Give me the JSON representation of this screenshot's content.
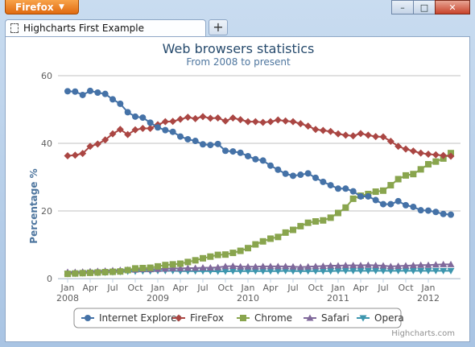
{
  "window": {
    "app_button": "Firefox",
    "tab_title": "Highcharts First Example",
    "new_tab_label": "+",
    "controls": {
      "minimize": "–",
      "maximize": "□",
      "close": "✕"
    }
  },
  "icons": [
    "dropdown-caret-icon",
    "page-icon",
    "plus-icon",
    "minimize-icon",
    "maximize-icon",
    "close-icon"
  ],
  "chart_data": {
    "type": "line",
    "title": "Web browsers statistics",
    "subtitle": "From 2008 to present",
    "ylabel": "Percentage %",
    "ylim": [
      0,
      60
    ],
    "yticks": [
      0,
      20,
      40,
      60
    ],
    "grid": true,
    "legend": "bottom",
    "credits": "Highcharts.com",
    "x_tick_labels": [
      "Jan",
      "Apr",
      "Jul",
      "Oct",
      "Jan",
      "Apr",
      "Jul",
      "Oct",
      "Jan",
      "Apr",
      "Jul",
      "Oct",
      "Jan",
      "Apr",
      "Jul",
      "Oct",
      "Jan"
    ],
    "x_year_labels": [
      "2008",
      "2009",
      "2010",
      "2011",
      "2012"
    ],
    "x": [
      "2008-01",
      "2008-02",
      "2008-03",
      "2008-04",
      "2008-05",
      "2008-06",
      "2008-07",
      "2008-08",
      "2008-09",
      "2008-10",
      "2008-11",
      "2008-12",
      "2009-01",
      "2009-02",
      "2009-03",
      "2009-04",
      "2009-05",
      "2009-06",
      "2009-07",
      "2009-08",
      "2009-09",
      "2009-10",
      "2009-11",
      "2009-12",
      "2010-01",
      "2010-02",
      "2010-03",
      "2010-04",
      "2010-05",
      "2010-06",
      "2010-07",
      "2010-08",
      "2010-09",
      "2010-10",
      "2010-11",
      "2010-12",
      "2011-01",
      "2011-02",
      "2011-03",
      "2011-04",
      "2011-05",
      "2011-06",
      "2011-07",
      "2011-08",
      "2011-09",
      "2011-10",
      "2011-11",
      "2011-12",
      "2012-01",
      "2012-02",
      "2012-03",
      "2012-04"
    ],
    "series": [
      {
        "name": "Internet Explorer",
        "color": "#4572a7",
        "marker": "circle",
        "values": [
          55.4,
          55.3,
          54.3,
          55.5,
          55.0,
          54.6,
          53.0,
          51.7,
          49.2,
          47.9,
          47.6,
          46.1,
          44.7,
          43.9,
          43.4,
          42.0,
          41.2,
          40.7,
          39.7,
          39.5,
          39.8,
          37.8,
          37.6,
          37.2,
          36.2,
          35.3,
          34.9,
          33.4,
          32.2,
          31.0,
          30.4,
          30.7,
          31.1,
          29.8,
          28.6,
          27.6,
          26.6,
          26.6,
          25.8,
          24.3,
          24.3,
          23.2,
          22.0,
          22.0,
          22.9,
          21.7,
          21.2,
          20.2,
          20.1,
          19.7,
          19.1,
          18.9
        ]
      },
      {
        "name": "FireFox",
        "color": "#aa4643",
        "marker": "diamond",
        "values": [
          36.3,
          36.5,
          37.0,
          39.1,
          39.8,
          41.0,
          42.8,
          44.1,
          42.6,
          44.0,
          44.4,
          44.4,
          45.5,
          46.4,
          46.5,
          47.1,
          47.7,
          47.3,
          47.9,
          47.4,
          47.5,
          46.6,
          47.5,
          47.0,
          46.4,
          46.4,
          46.2,
          46.4,
          46.9,
          46.6,
          46.4,
          45.8,
          45.1,
          44.1,
          43.8,
          43.5,
          42.8,
          42.4,
          42.2,
          42.9,
          42.4,
          42.0,
          41.9,
          40.6,
          39.1,
          38.3,
          37.7,
          37.1,
          36.8,
          36.6,
          36.4,
          36.2
        ]
      },
      {
        "name": "Chrome",
        "color": "#89a54e",
        "marker": "square",
        "values": [
          1.4,
          1.5,
          1.6,
          1.7,
          1.8,
          1.9,
          2.0,
          2.1,
          2.5,
          3.0,
          3.1,
          3.2,
          3.6,
          4.0,
          4.2,
          4.4,
          4.9,
          5.4,
          6.0,
          6.5,
          7.0,
          7.1,
          7.6,
          8.2,
          9.0,
          10.1,
          11.0,
          11.8,
          12.3,
          13.6,
          14.4,
          15.5,
          16.5,
          16.9,
          17.2,
          18.0,
          19.4,
          21.0,
          23.6,
          24.5,
          25.0,
          25.7,
          26.0,
          27.6,
          29.4,
          30.5,
          30.9,
          32.3,
          33.8,
          34.6,
          35.5,
          37.1
        ]
      },
      {
        "name": "Safari",
        "color": "#80699b",
        "marker": "triangle",
        "values": [
          1.9,
          1.9,
          2.0,
          2.1,
          2.2,
          2.3,
          2.4,
          2.5,
          2.6,
          2.6,
          2.7,
          2.7,
          2.8,
          2.9,
          3.0,
          3.0,
          3.1,
          3.1,
          3.2,
          3.2,
          3.3,
          3.6,
          3.7,
          3.5,
          3.5,
          3.5,
          3.6,
          3.6,
          3.6,
          3.6,
          3.5,
          3.4,
          3.5,
          3.6,
          3.7,
          3.8,
          3.8,
          3.9,
          3.9,
          3.9,
          4.0,
          3.9,
          3.8,
          3.6,
          3.7,
          3.8,
          3.9,
          4.0,
          4.0,
          4.1,
          4.2,
          4.2
        ]
      },
      {
        "name": "Opera",
        "color": "#3d96ae",
        "marker": "triangle-down",
        "values": [
          1.4,
          1.5,
          1.6,
          1.7,
          1.7,
          1.8,
          1.9,
          2.0,
          2.1,
          2.1,
          2.2,
          2.2,
          2.3,
          2.3,
          2.3,
          2.2,
          2.2,
          2.2,
          2.2,
          2.2,
          2.1,
          2.1,
          2.2,
          2.2,
          2.2,
          2.2,
          2.2,
          2.2,
          2.2,
          2.3,
          2.2,
          2.2,
          2.2,
          2.2,
          2.2,
          2.2,
          2.3,
          2.3,
          2.3,
          2.3,
          2.3,
          2.3,
          2.3,
          2.3,
          2.3,
          2.3,
          2.3,
          2.3,
          2.3,
          2.3,
          2.3,
          2.3
        ]
      }
    ]
  }
}
